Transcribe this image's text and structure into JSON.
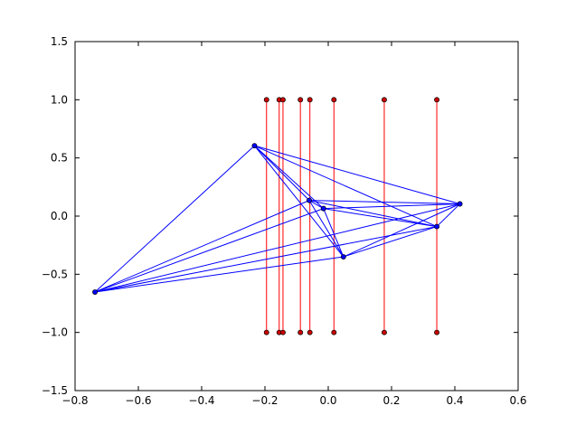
{
  "chart_data": {
    "type": "scatter",
    "title": "",
    "xlabel": "",
    "ylabel": "",
    "xlim": [
      -0.8,
      0.6
    ],
    "ylim": [
      -1.5,
      1.5
    ],
    "grid": false,
    "legend": "none",
    "x_ticks": [
      -0.8,
      -0.6,
      -0.4,
      -0.2,
      0.0,
      0.2,
      0.4,
      0.6
    ],
    "x_tick_labels": [
      "−0.8",
      "−0.6",
      "−0.4",
      "−0.2",
      "0.0",
      "0.2",
      "0.4",
      "0.6"
    ],
    "y_ticks": [
      -1.5,
      -1.0,
      -0.5,
      0.0,
      0.5,
      1.0,
      1.5
    ],
    "y_tick_labels": [
      "−1.5",
      "−1.0",
      "−0.5",
      "0.0",
      "0.5",
      "1.0",
      "1.5"
    ],
    "colors": {
      "red": "#ff0000",
      "blue": "#0000ff",
      "red_marker_fill": "#cc0000"
    },
    "series": [
      {
        "color": "#ff0000",
        "style": "vertical-segments",
        "segments": [
          {
            "x": -0.195,
            "y": [
              1.0,
              -1.0
            ]
          },
          {
            "x": -0.155,
            "y": [
              1.0,
              -1.0
            ]
          },
          {
            "x": -0.143,
            "y": [
              1.0,
              -1.0
            ]
          },
          {
            "x": -0.088,
            "y": [
              1.0,
              -1.0
            ]
          },
          {
            "x": -0.058,
            "y": [
              1.0,
              -1.0
            ]
          },
          {
            "x": 0.018,
            "y": [
              1.0,
              -1.0
            ]
          },
          {
            "x": 0.177,
            "y": [
              1.0,
              -1.0
            ]
          },
          {
            "x": 0.343,
            "y": [
              1.0,
              -1.0
            ]
          }
        ]
      },
      {
        "color": "#0000ff",
        "style": "network",
        "nodes": [
          {
            "x": -0.737,
            "y": -0.653
          },
          {
            "x": -0.233,
            "y": 0.605
          },
          {
            "x": -0.06,
            "y": 0.135
          },
          {
            "x": -0.015,
            "y": 0.065
          },
          {
            "x": 0.048,
            "y": -0.35
          },
          {
            "x": 0.343,
            "y": -0.09
          },
          {
            "x": 0.416,
            "y": 0.105
          }
        ],
        "edges": [
          [
            0,
            1
          ],
          [
            0,
            2
          ],
          [
            0,
            3
          ],
          [
            0,
            4
          ],
          [
            0,
            5
          ],
          [
            0,
            6
          ],
          [
            1,
            2
          ],
          [
            1,
            3
          ],
          [
            1,
            4
          ],
          [
            1,
            5
          ],
          [
            1,
            6
          ],
          [
            2,
            3
          ],
          [
            2,
            4
          ],
          [
            2,
            5
          ],
          [
            2,
            6
          ],
          [
            3,
            4
          ],
          [
            3,
            5
          ],
          [
            3,
            6
          ],
          [
            4,
            5
          ],
          [
            4,
            6
          ],
          [
            5,
            6
          ]
        ]
      }
    ]
  }
}
